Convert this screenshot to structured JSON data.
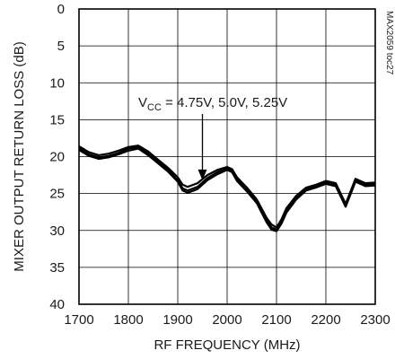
{
  "chart_data": {
    "type": "line",
    "title": "",
    "xlabel": "RF FREQUENCY (MHz)",
    "ylabel": "MIXER OUTPUT RETURN LOSS (dB)",
    "xlim": [
      1700,
      2300
    ],
    "ylim": [
      0,
      40
    ],
    "y_inverted": true,
    "grid": true,
    "x_ticks": [
      1700,
      1800,
      1900,
      2000,
      2100,
      2200,
      2300
    ],
    "x_tick_labels": [
      "1700",
      "1800",
      "1900",
      "2000",
      "2100",
      "2200",
      "2300"
    ],
    "y_ticks": [
      0,
      5,
      10,
      15,
      20,
      25,
      30,
      35,
      40
    ],
    "y_tick_labels": [
      "0",
      "5",
      "10",
      "15",
      "20",
      "25",
      "30",
      "35",
      "40"
    ],
    "annotation": {
      "prefix": "V",
      "subscript": "CC",
      "text": " = 4.75V, 5.0V, 5.25V",
      "arrow_to": [
        1950,
        23.2
      ],
      "anchor": [
        1938,
        15.5
      ]
    },
    "side_label": "MAX2059 toc27",
    "line_color": "#000000",
    "series": [
      {
        "x": [
          1700,
          1720,
          1740,
          1760,
          1780,
          1800,
          1820,
          1840,
          1860,
          1880,
          1900,
          1910,
          1920,
          1940,
          1960,
          1980,
          2000,
          2010,
          2020,
          2040,
          2060,
          2080,
          2090,
          2100,
          2110,
          2120,
          2140,
          2160,
          2180,
          2200,
          2220,
          2240,
          2260,
          2280,
          2300
        ],
        "values": [
          18.6,
          19.4,
          19.8,
          19.6,
          19.2,
          18.7,
          18.5,
          19.3,
          20.4,
          21.5,
          22.8,
          23.8,
          24.1,
          23.6,
          22.5,
          21.8,
          21.4,
          21.7,
          22.8,
          24.2,
          25.8,
          28.3,
          29.2,
          29.6,
          28.5,
          27.0,
          25.3,
          24.2,
          23.8,
          23.3,
          23.6,
          26.4,
          23.0,
          23.6,
          23.5
        ]
      },
      {
        "x": [
          1700,
          1720,
          1740,
          1760,
          1780,
          1800,
          1820,
          1840,
          1860,
          1880,
          1900,
          1910,
          1920,
          1940,
          1960,
          1980,
          2000,
          2010,
          2020,
          2040,
          2060,
          2080,
          2090,
          2100,
          2110,
          2120,
          2140,
          2160,
          2180,
          2200,
          2220,
          2240,
          2260,
          2280,
          2300
        ],
        "values": [
          18.9,
          19.7,
          20.1,
          19.9,
          19.5,
          18.9,
          18.7,
          19.6,
          20.7,
          21.8,
          23.2,
          24.3,
          24.6,
          24.1,
          22.9,
          22.1,
          21.6,
          21.9,
          23.1,
          24.5,
          26.1,
          28.6,
          29.6,
          29.9,
          28.8,
          27.3,
          25.6,
          24.4,
          24.0,
          23.5,
          23.8,
          26.6,
          23.2,
          23.8,
          23.7
        ]
      },
      {
        "x": [
          1700,
          1720,
          1740,
          1760,
          1780,
          1800,
          1820,
          1840,
          1860,
          1880,
          1900,
          1910,
          1920,
          1940,
          1960,
          1980,
          2000,
          2010,
          2020,
          2040,
          2060,
          2080,
          2090,
          2100,
          2110,
          2120,
          2140,
          2160,
          2180,
          2200,
          2220,
          2240,
          2260,
          2280,
          2300
        ],
        "values": [
          19.1,
          19.9,
          20.3,
          20.1,
          19.7,
          19.2,
          18.9,
          19.8,
          20.9,
          22.0,
          23.4,
          24.6,
          24.9,
          24.4,
          23.2,
          22.4,
          21.8,
          22.1,
          23.3,
          24.7,
          26.3,
          28.9,
          29.9,
          30.1,
          29.1,
          27.6,
          25.8,
          24.6,
          24.2,
          23.7,
          24.0,
          26.8,
          23.4,
          24.0,
          23.9
        ]
      }
    ]
  }
}
